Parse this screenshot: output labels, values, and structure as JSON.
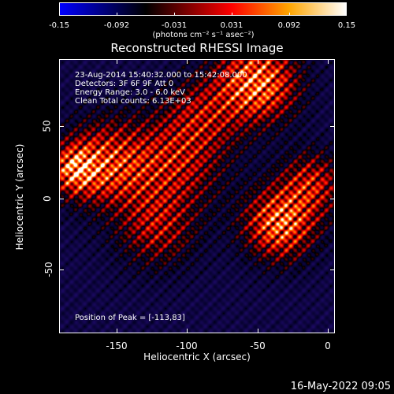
{
  "colorbar": {
    "labels": [
      "-0.15",
      "-0.092",
      "-0.031",
      "0.031",
      "0.092",
      "0.15"
    ],
    "unit": "(photons cm⁻² s⁻¹ asec⁻²)",
    "colors": [
      "#0000ff",
      "#000000",
      "#ff0000",
      "#ffa500",
      "#ffffff"
    ]
  },
  "title": "Reconstructed RHESSI Image",
  "annotations": {
    "time": "23-Aug-2014 15:40:32.000 to 15:42:08.000",
    "detectors": "Detectors: 3F 6F 9F  Att 0",
    "energy": "Energy Range: 3.0 - 6.0 keV",
    "clean": "Clean     Total counts: 6.13E+03",
    "peak": "Position of Peak = [-113,83]"
  },
  "axes": {
    "xlabel": "Heliocentric X (arcsec)",
    "ylabel": "Heliocentric Y (arcsec)",
    "xticks": [
      "-150",
      "-100",
      "-50",
      "0"
    ],
    "yticks": [
      "50",
      "0",
      "-50"
    ],
    "xrange": [
      -190,
      5
    ],
    "yrange": [
      -95,
      100
    ]
  },
  "footer": "16-May-2022 09:05"
}
